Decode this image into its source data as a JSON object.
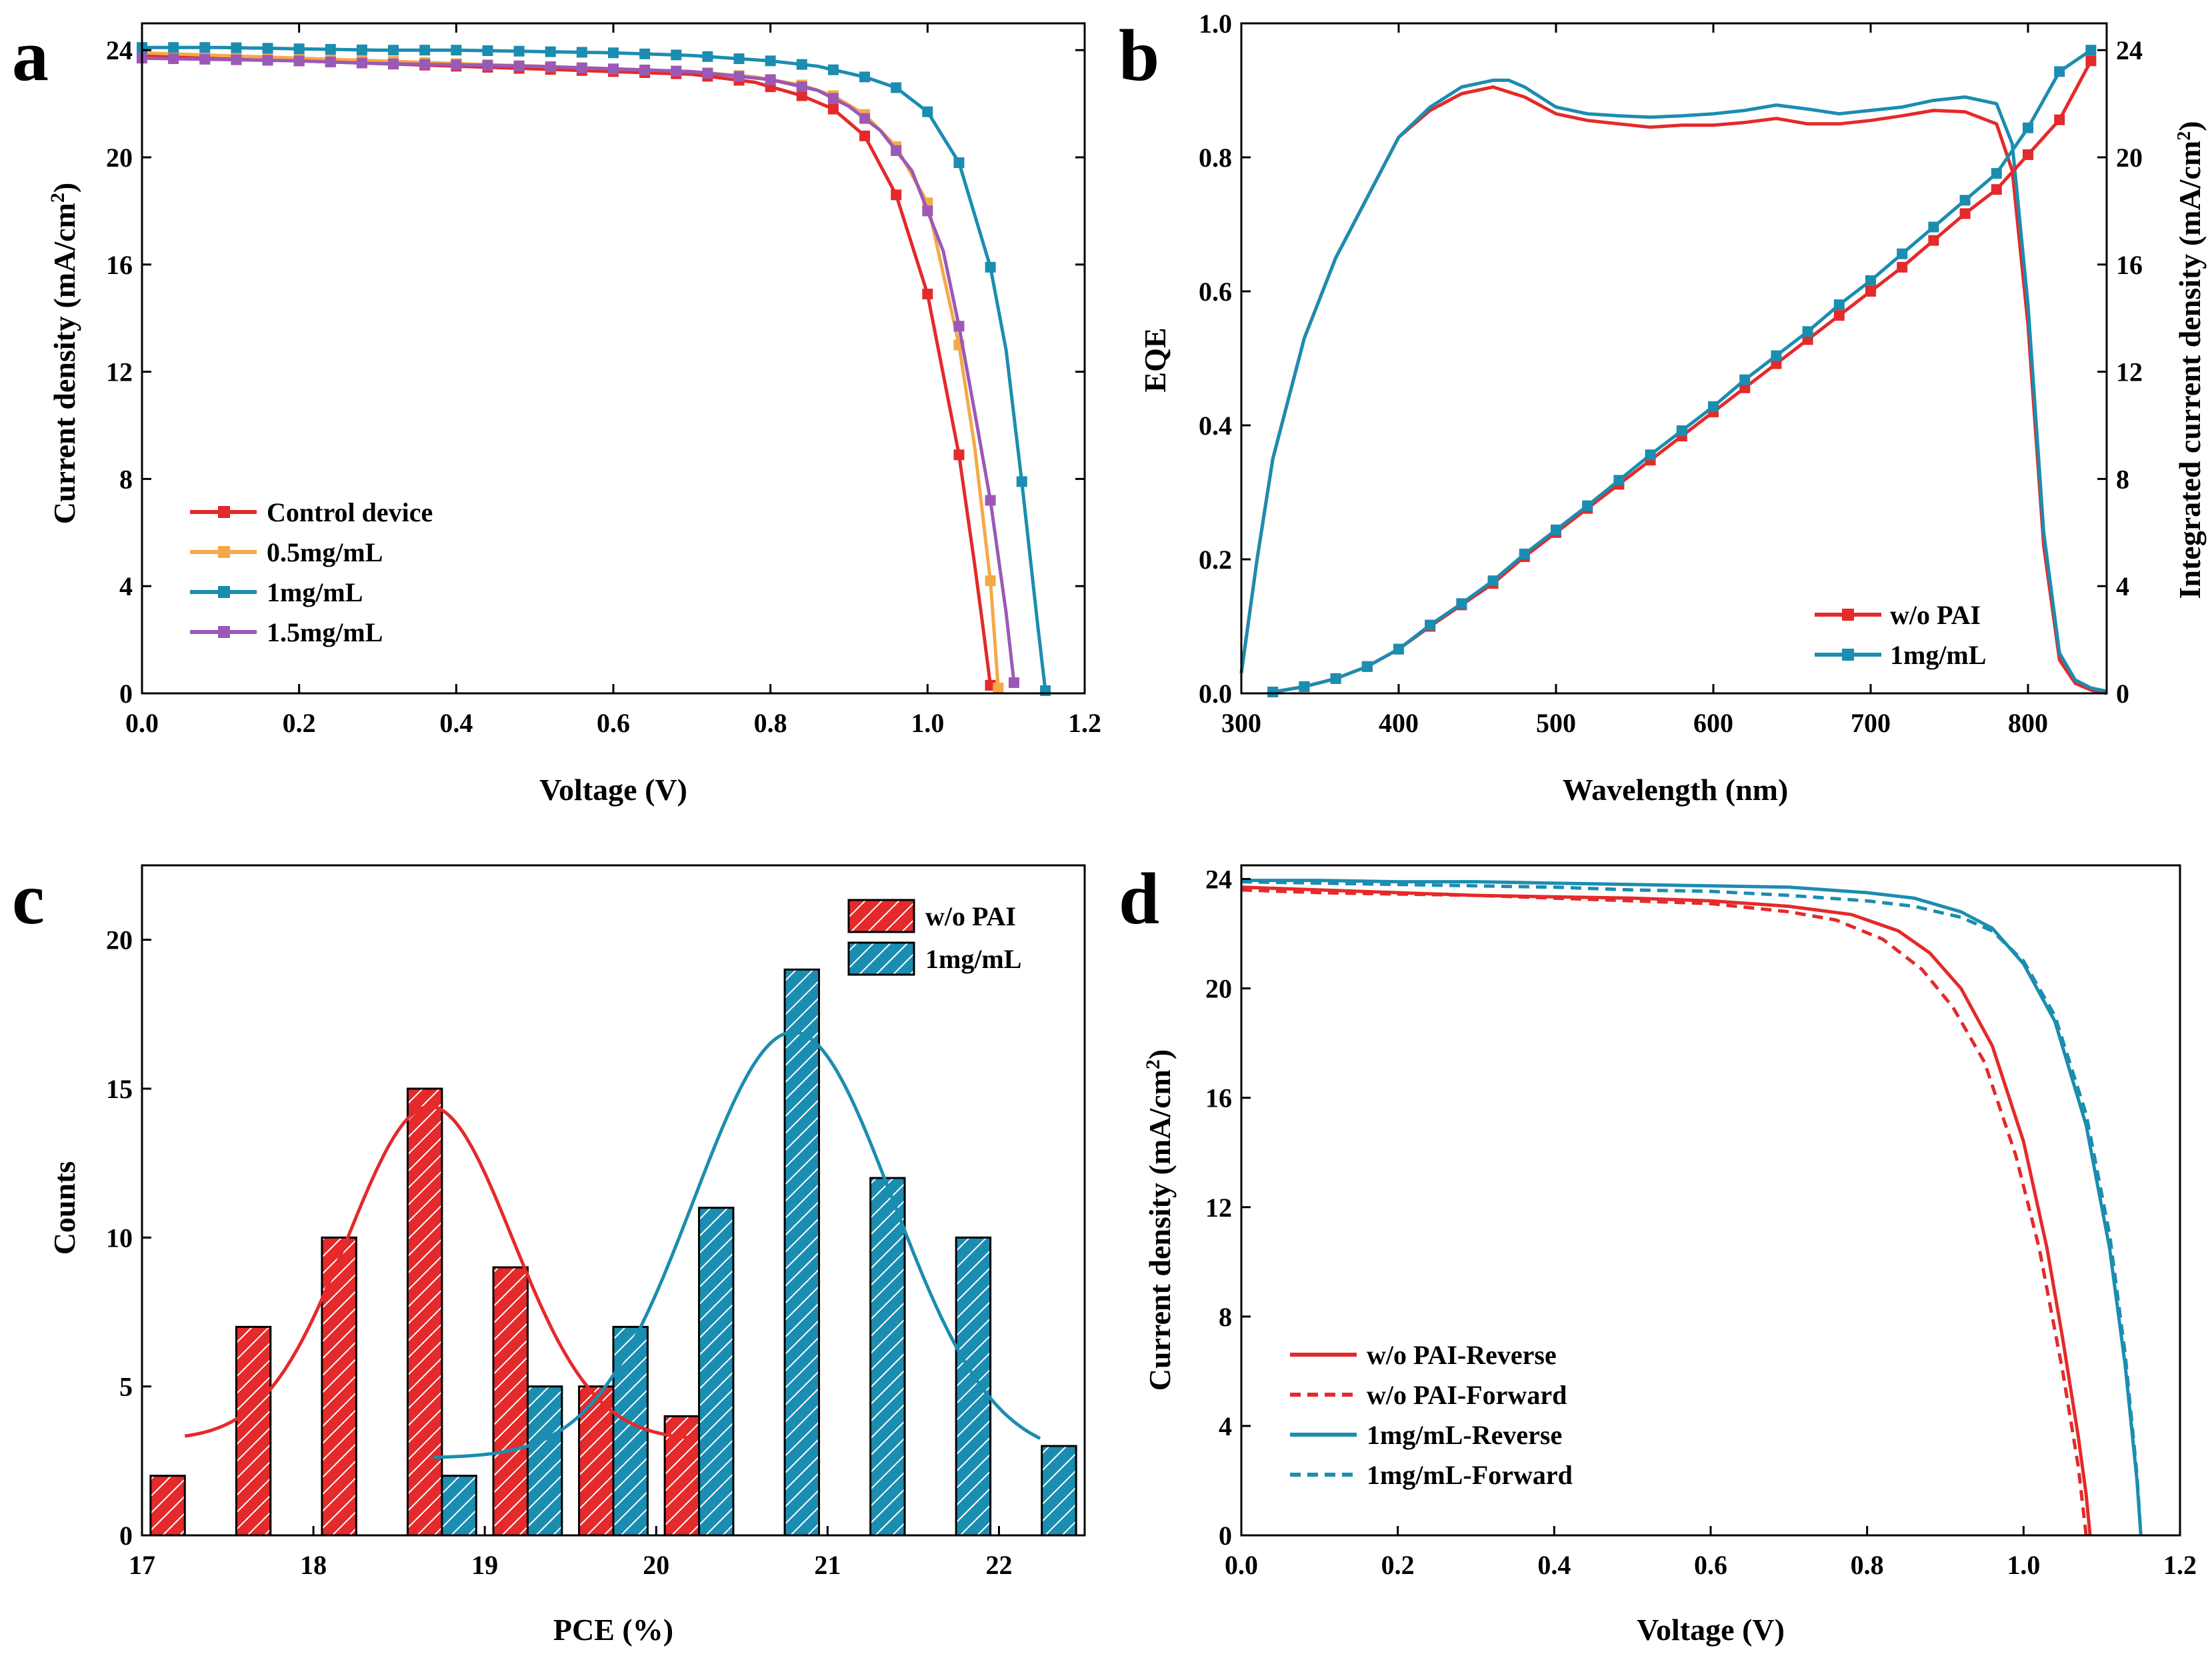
{
  "colors": {
    "red": "#E42A2A",
    "orange": "#F5A947",
    "teal": "#1B8DB0",
    "purple": "#9B59B6",
    "axis": "#000000"
  },
  "chart_data": [
    {
      "panel": "a",
      "type": "line",
      "xlabel": "Voltage (V)",
      "ylabel": "Current density (mA/cm",
      "ylabel_sup": "2",
      "ylabel_tail": ")",
      "xlim": [
        0,
        1.2
      ],
      "ylim": [
        0,
        25
      ],
      "xticks": [
        0.0,
        0.2,
        0.4,
        0.6,
        0.8,
        1.0,
        1.2
      ],
      "xtick_labels": [
        "0.0",
        "0.2",
        "0.4",
        "0.6",
        "0.8",
        "1.0",
        "1.2"
      ],
      "yticks": [
        0,
        4,
        8,
        12,
        16,
        20,
        24
      ],
      "ytick_labels": [
        "0",
        "4",
        "8",
        "12",
        "16",
        "20",
        "24"
      ],
      "legend_position": "bottom-left",
      "series": [
        {
          "name": "Control device",
          "color": "#E42A2A",
          "x": [
            0,
            0.1,
            0.2,
            0.3,
            0.4,
            0.5,
            0.6,
            0.7,
            0.78,
            0.84,
            0.88,
            0.92,
            0.96,
            1.0,
            1.04,
            1.06,
            1.07,
            1.08
          ],
          "y": [
            23.8,
            23.7,
            23.6,
            23.5,
            23.4,
            23.3,
            23.2,
            23.1,
            22.8,
            22.3,
            21.8,
            20.8,
            18.6,
            14.9,
            8.9,
            4.8,
            2.6,
            0.3
          ]
        },
        {
          "name": "0.5mg/mL",
          "color": "#F5A947",
          "x": [
            0,
            0.1,
            0.2,
            0.3,
            0.4,
            0.5,
            0.6,
            0.7,
            0.78,
            0.84,
            0.88,
            0.92,
            0.96,
            1.0,
            1.04,
            1.06,
            1.08,
            1.09
          ],
          "y": [
            23.9,
            23.8,
            23.7,
            23.6,
            23.5,
            23.4,
            23.3,
            23.2,
            23.0,
            22.7,
            22.3,
            21.6,
            20.4,
            18.3,
            13.0,
            9.2,
            4.2,
            0.2
          ]
        },
        {
          "name": "1mg/mL",
          "color": "#1B8DB0",
          "x": [
            0,
            0.1,
            0.2,
            0.3,
            0.4,
            0.5,
            0.6,
            0.7,
            0.8,
            0.86,
            0.92,
            0.96,
            1.0,
            1.04,
            1.08,
            1.1,
            1.12,
            1.14,
            1.15
          ],
          "y": [
            24.1,
            24.1,
            24.05,
            24.0,
            24.0,
            23.95,
            23.9,
            23.8,
            23.6,
            23.4,
            23.0,
            22.6,
            21.7,
            19.8,
            15.9,
            12.8,
            7.9,
            2.6,
            0.1
          ]
        },
        {
          "name": "1.5mg/mL",
          "color": "#9B59B6",
          "x": [
            0,
            0.1,
            0.2,
            0.3,
            0.4,
            0.5,
            0.6,
            0.7,
            0.8,
            0.86,
            0.9,
            0.94,
            0.98,
            1.02,
            1.04,
            1.06,
            1.08,
            1.1,
            1.11
          ],
          "y": [
            23.7,
            23.65,
            23.6,
            23.5,
            23.45,
            23.4,
            23.3,
            23.2,
            22.9,
            22.5,
            21.9,
            21.0,
            19.5,
            16.5,
            13.7,
            10.5,
            7.2,
            3.0,
            0.4
          ]
        }
      ]
    },
    {
      "panel": "b",
      "type": "line",
      "xlabel": "Wavelength (nm)",
      "ylabel": "EQE",
      "ylabel_right": "Integrated current density (mA/cm",
      "ylabel_right_sup": "2",
      "ylabel_right_tail": ")",
      "xlim": [
        300,
        850
      ],
      "ylim": [
        0,
        1.0
      ],
      "ylim_right": [
        0,
        25
      ],
      "xticks": [
        300,
        400,
        500,
        600,
        700,
        800
      ],
      "xtick_labels": [
        "300",
        "400",
        "500",
        "600",
        "700",
        "800"
      ],
      "yticks": [
        0,
        0.2,
        0.4,
        0.6,
        0.8,
        1.0
      ],
      "ytick_labels": [
        "0.0",
        "0.2",
        "0.4",
        "0.6",
        "0.8",
        "1.0"
      ],
      "yticks_right": [
        0,
        4,
        8,
        12,
        16,
        20,
        24
      ],
      "ytick_labels_right": [
        "0",
        "4",
        "8",
        "12",
        "16",
        "20",
        "24"
      ],
      "legend_position": "bottom-right",
      "series": [
        {
          "name": "w/o PAI",
          "color": "#E42A2A",
          "axis": "left",
          "x": [
            300,
            310,
            320,
            340,
            360,
            380,
            400,
            420,
            440,
            460,
            480,
            500,
            520,
            540,
            560,
            580,
            600,
            620,
            640,
            660,
            680,
            700,
            720,
            740,
            760,
            780,
            790,
            800,
            810,
            820,
            830,
            840,
            850
          ],
          "y": [
            0.03,
            0.2,
            0.35,
            0.53,
            0.65,
            0.74,
            0.83,
            0.87,
            0.895,
            0.905,
            0.89,
            0.865,
            0.855,
            0.85,
            0.845,
            0.848,
            0.848,
            0.852,
            0.858,
            0.85,
            0.85,
            0.855,
            0.862,
            0.87,
            0.868,
            0.85,
            0.78,
            0.55,
            0.22,
            0.05,
            0.015,
            0.005,
            0.0
          ]
        },
        {
          "name": "1mg/mL",
          "color": "#1B8DB0",
          "axis": "left",
          "x": [
            300,
            310,
            320,
            340,
            360,
            380,
            400,
            420,
            440,
            460,
            470,
            480,
            500,
            520,
            540,
            560,
            580,
            600,
            620,
            640,
            660,
            680,
            700,
            720,
            740,
            760,
            780,
            790,
            800,
            810,
            820,
            830,
            840,
            850
          ],
          "y": [
            0.03,
            0.2,
            0.35,
            0.53,
            0.65,
            0.74,
            0.83,
            0.875,
            0.905,
            0.915,
            0.915,
            0.905,
            0.875,
            0.865,
            0.862,
            0.86,
            0.862,
            0.865,
            0.87,
            0.878,
            0.872,
            0.865,
            0.87,
            0.875,
            0.885,
            0.89,
            0.88,
            0.82,
            0.58,
            0.24,
            0.06,
            0.02,
            0.008,
            0.003
          ]
        },
        {
          "name": "w/o PAI",
          "color": "#E42A2A",
          "axis": "right",
          "markers": true,
          "x": [
            320,
            340,
            360,
            380,
            400,
            420,
            440,
            460,
            480,
            500,
            520,
            540,
            560,
            580,
            600,
            620,
            640,
            660,
            680,
            700,
            720,
            740,
            760,
            780,
            800,
            820,
            840
          ],
          "y": [
            0.05,
            0.25,
            0.55,
            1.0,
            1.65,
            2.5,
            3.3,
            4.1,
            5.1,
            6.0,
            6.9,
            7.8,
            8.7,
            9.6,
            10.5,
            11.4,
            12.3,
            13.2,
            14.1,
            15.0,
            15.9,
            16.9,
            17.9,
            18.8,
            20.1,
            21.4,
            23.6
          ]
        },
        {
          "name": "1mg/mL",
          "color": "#1B8DB0",
          "axis": "right",
          "markers": true,
          "x": [
            320,
            340,
            360,
            380,
            400,
            420,
            440,
            460,
            480,
            500,
            520,
            540,
            560,
            580,
            600,
            620,
            640,
            660,
            680,
            700,
            720,
            740,
            760,
            780,
            800,
            820,
            840
          ],
          "y": [
            0.05,
            0.25,
            0.55,
            1.0,
            1.65,
            2.55,
            3.35,
            4.2,
            5.2,
            6.1,
            7.0,
            7.95,
            8.9,
            9.8,
            10.7,
            11.7,
            12.6,
            13.5,
            14.5,
            15.4,
            16.4,
            17.4,
            18.4,
            19.4,
            21.1,
            23.2,
            24.0
          ]
        }
      ]
    },
    {
      "panel": "c",
      "type": "bar",
      "xlabel": "PCE (%)",
      "ylabel": "Counts",
      "xlim": [
        17,
        22.5
      ],
      "ylim": [
        0,
        22.5
      ],
      "xticks": [
        17,
        18,
        19,
        20,
        21,
        22
      ],
      "xtick_labels": [
        "17",
        "18",
        "19",
        "20",
        "21",
        "22"
      ],
      "yticks": [
        0,
        5,
        10,
        15,
        20
      ],
      "ytick_labels": [
        "0",
        "5",
        "10",
        "15",
        "20"
      ],
      "legend_position": "top-right",
      "series": [
        {
          "name": "w/o PAI",
          "color": "#E42A2A",
          "bins": [
            17.15,
            17.65,
            18.15,
            18.65,
            19.15,
            19.65,
            20.15
          ],
          "values": [
            2,
            7,
            10,
            15,
            9,
            5,
            4
          ],
          "fit": {
            "mu": 18.68,
            "sigma": 0.48,
            "amp": 11.2,
            "base": 3.2,
            "x_range": [
              17.25,
              20.2
            ]
          }
        },
        {
          "name": "1mg/mL",
          "color": "#1B8DB0",
          "bins": [
            18.85,
            19.35,
            19.85,
            20.35,
            20.85,
            21.35,
            21.85,
            22.35
          ],
          "values": [
            2,
            5,
            7,
            11,
            19,
            12,
            10,
            3
          ],
          "fit": {
            "mu": 20.8,
            "sigma": 0.58,
            "amp": 14.3,
            "base": 2.6,
            "x_range": [
              18.7,
              22.25
            ]
          }
        }
      ]
    },
    {
      "panel": "d",
      "type": "line",
      "xlabel": "Voltage (V)",
      "ylabel": "Current density (mA/cm",
      "ylabel_sup": "2",
      "ylabel_tail": ")",
      "xlim": [
        0,
        1.2
      ],
      "ylim": [
        0,
        24.5
      ],
      "xticks": [
        0.0,
        0.2,
        0.4,
        0.6,
        0.8,
        1.0,
        1.2
      ],
      "xtick_labels": [
        "0.0",
        "0.2",
        "0.4",
        "0.6",
        "0.8",
        "1.0",
        "1.2"
      ],
      "yticks": [
        0,
        4,
        8,
        12,
        16,
        20,
        24
      ],
      "ytick_labels": [
        "0",
        "4",
        "8",
        "12",
        "16",
        "20",
        "24"
      ],
      "legend_position": "bottom-left",
      "series": [
        {
          "name": "w/o PAI-Reverse",
          "color": "#E42A2A",
          "dash": false,
          "x": [
            0,
            0.1,
            0.2,
            0.3,
            0.4,
            0.5,
            0.6,
            0.7,
            0.78,
            0.84,
            0.88,
            0.92,
            0.96,
            1.0,
            1.03,
            1.05,
            1.07,
            1.08,
            1.085
          ],
          "y": [
            23.7,
            23.6,
            23.5,
            23.4,
            23.35,
            23.3,
            23.2,
            23.0,
            22.7,
            22.1,
            21.3,
            20.0,
            17.9,
            14.4,
            10.5,
            7.2,
            3.6,
            1.5,
            0.0
          ]
        },
        {
          "name": "w/o PAI-Forward",
          "color": "#E42A2A",
          "dash": true,
          "x": [
            0,
            0.1,
            0.2,
            0.3,
            0.4,
            0.5,
            0.6,
            0.7,
            0.76,
            0.82,
            0.87,
            0.91,
            0.95,
            0.99,
            1.02,
            1.05,
            1.07,
            1.08
          ],
          "y": [
            23.6,
            23.5,
            23.45,
            23.4,
            23.3,
            23.2,
            23.1,
            22.8,
            22.5,
            21.8,
            20.7,
            19.3,
            17.3,
            13.9,
            10.5,
            6.0,
            2.5,
            0.0
          ]
        },
        {
          "name": "1mg/mL-Reverse",
          "color": "#1B8DB0",
          "dash": false,
          "x": [
            0,
            0.1,
            0.2,
            0.3,
            0.4,
            0.5,
            0.6,
            0.7,
            0.8,
            0.86,
            0.92,
            0.96,
            1.0,
            1.04,
            1.08,
            1.11,
            1.13,
            1.145,
            1.15
          ],
          "y": [
            23.95,
            23.95,
            23.9,
            23.9,
            23.85,
            23.8,
            23.75,
            23.7,
            23.5,
            23.3,
            22.8,
            22.2,
            20.9,
            18.8,
            15.0,
            10.5,
            6.2,
            2.0,
            0.0
          ]
        },
        {
          "name": "1mg/mL-Forward",
          "color": "#1B8DB0",
          "dash": true,
          "x": [
            0,
            0.1,
            0.2,
            0.3,
            0.4,
            0.5,
            0.6,
            0.7,
            0.8,
            0.86,
            0.92,
            0.96,
            1.0,
            1.04,
            1.08,
            1.11,
            1.13,
            1.145,
            1.15
          ],
          "y": [
            23.9,
            23.85,
            23.8,
            23.75,
            23.7,
            23.6,
            23.55,
            23.4,
            23.2,
            23.0,
            22.6,
            22.1,
            21.0,
            19.0,
            15.4,
            11.0,
            6.6,
            2.2,
            0.0
          ]
        }
      ]
    }
  ]
}
